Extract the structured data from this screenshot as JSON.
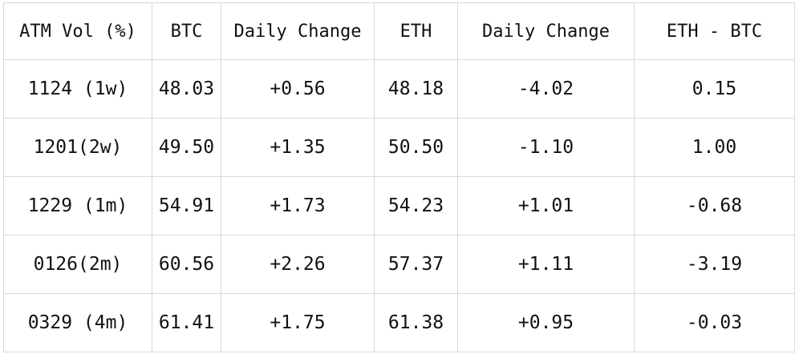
{
  "table": {
    "headers": [
      "ATM Vol (%)",
      "BTC",
      "Daily Change",
      "ETH",
      "Daily Change",
      "ETH - BTC"
    ],
    "rows": [
      [
        "1124 (1w)",
        "48.03",
        "+0.56",
        "48.18",
        "-4.02",
        "0.15"
      ],
      [
        "1201(2w)",
        "49.50",
        "+1.35",
        "50.50",
        "-1.10",
        "1.00"
      ],
      [
        "1229 (1m)",
        "54.91",
        "+1.73",
        "54.23",
        "+1.01",
        "-0.68"
      ],
      [
        "0126(2m)",
        "60.56",
        "+2.26",
        "57.37",
        "+1.11",
        "-3.19"
      ],
      [
        "0329 (4m)",
        "61.41",
        "+1.75",
        "61.38",
        "+0.95",
        "-0.03"
      ]
    ]
  }
}
